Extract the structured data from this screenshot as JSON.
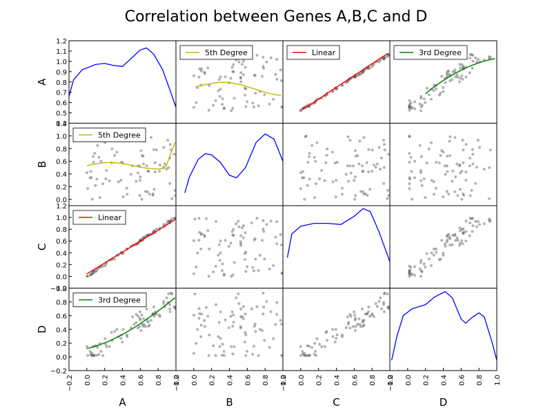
{
  "chart_data": {
    "type": "scatter",
    "title": "Correlation between Genes A,B,C and D",
    "variables": [
      "A",
      "B",
      "C",
      "D"
    ],
    "xlim": [
      -0.2,
      1.0
    ],
    "x_ticks": [
      "−0.2",
      "0.0",
      "0.2",
      "0.4",
      "0.6",
      "0.8",
      "1.0"
    ],
    "row_ticks": {
      "A": [
        "0.4",
        "0.5",
        "0.6",
        "0.7",
        "0.8",
        "0.9",
        "1.0",
        "1.1",
        "1.2"
      ],
      "B": [
        "0.0",
        "0.2",
        "0.4",
        "0.6",
        "0.8",
        "1.0",
        "1.2"
      ],
      "C": [
        "−0.2",
        "0.0",
        "0.2",
        "0.4",
        "0.6",
        "0.8",
        "1.0",
        "1.2"
      ],
      "D": [
        "−0.2",
        "0.0",
        "0.2",
        "0.4",
        "0.6",
        "0.8",
        "1.0"
      ]
    },
    "row_ylim": {
      "A": [
        0.4,
        1.2
      ],
      "B": [
        -0.1,
        1.2
      ],
      "C": [
        -0.2,
        1.2
      ],
      "D": [
        -0.2,
        1.0
      ]
    },
    "fits": {
      "linear_label": "Linear",
      "cubic_label": "3rd Degree",
      "quintic_label": "5th Degree"
    },
    "diagonal_kde": {
      "A": [
        [
          -0.2,
          0.66
        ],
        [
          -0.15,
          0.82
        ],
        [
          -0.05,
          0.92
        ],
        [
          0.1,
          0.97
        ],
        [
          0.2,
          0.98
        ],
        [
          0.3,
          0.96
        ],
        [
          0.4,
          0.95
        ],
        [
          0.5,
          1.03
        ],
        [
          0.6,
          1.11
        ],
        [
          0.67,
          1.13
        ],
        [
          0.75,
          1.07
        ],
        [
          0.85,
          0.92
        ],
        [
          0.95,
          0.68
        ],
        [
          1.05,
          0.43
        ]
      ],
      "B": [
        [
          -0.1,
          0.1
        ],
        [
          -0.05,
          0.35
        ],
        [
          0.05,
          0.63
        ],
        [
          0.13,
          0.72
        ],
        [
          0.2,
          0.7
        ],
        [
          0.3,
          0.58
        ],
        [
          0.4,
          0.38
        ],
        [
          0.48,
          0.34
        ],
        [
          0.58,
          0.5
        ],
        [
          0.7,
          0.9
        ],
        [
          0.8,
          1.03
        ],
        [
          0.9,
          0.95
        ],
        [
          1.0,
          0.6
        ],
        [
          1.1,
          0.08
        ],
        [
          1.15,
          -0.05
        ]
      ],
      "C": [
        [
          -0.15,
          0.32
        ],
        [
          -0.1,
          0.72
        ],
        [
          0.0,
          0.85
        ],
        [
          0.15,
          0.9
        ],
        [
          0.3,
          0.9
        ],
        [
          0.45,
          0.88
        ],
        [
          0.6,
          1.02
        ],
        [
          0.7,
          1.15
        ],
        [
          0.78,
          1.1
        ],
        [
          0.88,
          0.75
        ],
        [
          1.0,
          0.25
        ],
        [
          1.1,
          -0.12
        ],
        [
          1.2,
          -0.18
        ]
      ],
      "D": [
        [
          -0.18,
          -0.05
        ],
        [
          -0.12,
          0.3
        ],
        [
          -0.05,
          0.6
        ],
        [
          0.05,
          0.7
        ],
        [
          0.2,
          0.76
        ],
        [
          0.3,
          0.87
        ],
        [
          0.42,
          0.95
        ],
        [
          0.5,
          0.86
        ],
        [
          0.6,
          0.55
        ],
        [
          0.65,
          0.49
        ],
        [
          0.72,
          0.57
        ],
        [
          0.8,
          0.64
        ],
        [
          0.86,
          0.58
        ],
        [
          0.95,
          0.2
        ],
        [
          1.0,
          -0.05
        ]
      ]
    }
  }
}
